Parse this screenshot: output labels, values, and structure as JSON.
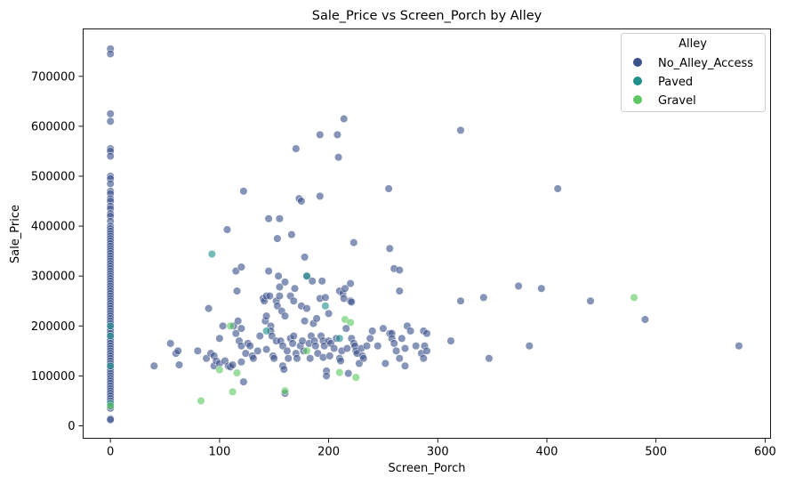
{
  "chart_data": {
    "type": "scatter",
    "title": "Sale_Price vs Screen_Porch by Alley",
    "xlabel": "Screen_Porch",
    "ylabel": "Sale_Price",
    "xlim": [
      -25,
      605
    ],
    "ylim": [
      -25000,
      795000
    ],
    "xticks": [
      0,
      100,
      200,
      300,
      400,
      500,
      600
    ],
    "yticks": [
      0,
      100000,
      200000,
      300000,
      400000,
      500000,
      600000,
      700000
    ],
    "xtick_labels": [
      "0",
      "100",
      "200",
      "300",
      "400",
      "500",
      "600"
    ],
    "ytick_labels": [
      "0",
      "100000",
      "200000",
      "300000",
      "400000",
      "500000",
      "600000",
      "700000"
    ],
    "grid": false,
    "legend": {
      "title": "Alley",
      "placement": "top-right"
    },
    "series": [
      {
        "name": "No_Alley_Access",
        "color": "#3b528b",
        "x0_y": [
          755000,
          745000,
          625000,
          610000,
          555000,
          550000,
          540000,
          500000,
          495000,
          485000,
          470000,
          465000,
          455000,
          450000,
          440000,
          435000,
          425000,
          420000,
          410000,
          400000,
          395000,
          390000,
          385000,
          380000,
          375000,
          370000,
          365000,
          360000,
          355000,
          350000,
          345000,
          340000,
          335000,
          330000,
          325000,
          320000,
          315000,
          310000,
          305000,
          300000,
          295000,
          290000,
          285000,
          280000,
          275000,
          270000,
          265000,
          260000,
          255000,
          250000,
          245000,
          240000,
          235000,
          230000,
          225000,
          220000,
          215000,
          210000,
          205000,
          200000,
          195000,
          190000,
          185000,
          180000,
          175000,
          170000,
          165000,
          160000,
          155000,
          150000,
          145000,
          140000,
          135000,
          130000,
          125000,
          120000,
          115000,
          110000,
          105000,
          100000,
          95000,
          90000,
          85000,
          80000,
          75000,
          70000,
          65000,
          60000,
          55000,
          50000,
          45000,
          40000,
          35000,
          14000,
          12000
        ],
        "points": [
          [
            40,
            120000
          ],
          [
            55,
            165000
          ],
          [
            60,
            145000
          ],
          [
            62,
            150000
          ],
          [
            63,
            122000
          ],
          [
            80,
            150000
          ],
          [
            88,
            135000
          ],
          [
            90,
            235000
          ],
          [
            92,
            145000
          ],
          [
            95,
            140000
          ],
          [
            95,
            120000
          ],
          [
            97,
            130000
          ],
          [
            100,
            125000
          ],
          [
            100,
            175000
          ],
          [
            103,
            200000
          ],
          [
            105,
            130000
          ],
          [
            107,
            393000
          ],
          [
            108,
            120000
          ],
          [
            110,
            118000
          ],
          [
            112,
            122000
          ],
          [
            113,
            200000
          ],
          [
            115,
            310000
          ],
          [
            115,
            185000
          ],
          [
            116,
            270000
          ],
          [
            117,
            210000
          ],
          [
            118,
            170000
          ],
          [
            120,
            318000
          ],
          [
            120,
            195000
          ],
          [
            120,
            160000
          ],
          [
            120,
            128000
          ],
          [
            122,
            88000
          ],
          [
            122,
            470000
          ],
          [
            124,
            145000
          ],
          [
            126,
            165000
          ],
          [
            128,
            160000
          ],
          [
            130,
            140000
          ],
          [
            131,
            135000
          ],
          [
            135,
            150000
          ],
          [
            137,
            180000
          ],
          [
            140,
            255000
          ],
          [
            141,
            250000
          ],
          [
            142,
            210000
          ],
          [
            143,
            260000
          ],
          [
            143,
            220000
          ],
          [
            143,
            153000
          ],
          [
            145,
            415000
          ],
          [
            145,
            310000
          ],
          [
            146,
            260000
          ],
          [
            147,
            200000
          ],
          [
            147,
            190000
          ],
          [
            148,
            180000
          ],
          [
            149,
            140000
          ],
          [
            150,
            135000
          ],
          [
            152,
            250000
          ],
          [
            152,
            170000
          ],
          [
            153,
            375000
          ],
          [
            153,
            240000
          ],
          [
            154,
            300000
          ],
          [
            155,
            415000
          ],
          [
            155,
            278000
          ],
          [
            155,
            260000
          ],
          [
            156,
            170000
          ],
          [
            157,
            230000
          ],
          [
            158,
            160000
          ],
          [
            158,
            120000
          ],
          [
            159,
            113000
          ],
          [
            160,
            288000
          ],
          [
            160,
            220000
          ],
          [
            160,
            65000
          ],
          [
            162,
            150000
          ],
          [
            163,
            135000
          ],
          [
            165,
            260000
          ],
          [
            165,
            175000
          ],
          [
            166,
            383000
          ],
          [
            167,
            165000
          ],
          [
            168,
            250000
          ],
          [
            168,
            180000
          ],
          [
            169,
            275000
          ],
          [
            170,
            555000
          ],
          [
            170,
            145000
          ],
          [
            171,
            135000
          ],
          [
            173,
            455000
          ],
          [
            174,
            160000
          ],
          [
            175,
            450000
          ],
          [
            175,
            240000
          ],
          [
            176,
            170000
          ],
          [
            177,
            150000
          ],
          [
            178,
            338000
          ],
          [
            178,
            210000
          ],
          [
            180,
            235000
          ],
          [
            180,
            300000
          ],
          [
            182,
            165000
          ],
          [
            183,
            135000
          ],
          [
            184,
            180000
          ],
          [
            185,
            290000
          ],
          [
            186,
            205000
          ],
          [
            187,
            170000
          ],
          [
            188,
            160000
          ],
          [
            189,
            215000
          ],
          [
            190,
            145000
          ],
          [
            192,
            583000
          ],
          [
            192,
            460000
          ],
          [
            192,
            255000
          ],
          [
            193,
            180000
          ],
          [
            194,
            290000
          ],
          [
            195,
            170000
          ],
          [
            195,
            137000
          ],
          [
            196,
            160000
          ],
          [
            197,
            257000
          ],
          [
            198,
            110000
          ],
          [
            198,
            100000
          ],
          [
            200,
            170000
          ],
          [
            200,
            225000
          ],
          [
            201,
            140000
          ],
          [
            202,
            165000
          ],
          [
            205,
            155000
          ],
          [
            207,
            175000
          ],
          [
            208,
            583000
          ],
          [
            209,
            538000
          ],
          [
            210,
            270000
          ],
          [
            210,
            135000
          ],
          [
            211,
            130000
          ],
          [
            212,
            150000
          ],
          [
            213,
            265000
          ],
          [
            214,
            615000
          ],
          [
            214,
            255000
          ],
          [
            215,
            275000
          ],
          [
            216,
            195000
          ],
          [
            217,
            155000
          ],
          [
            218,
            105000
          ],
          [
            220,
            250000
          ],
          [
            220,
            285000
          ],
          [
            221,
            248000
          ],
          [
            221,
            175000
          ],
          [
            223,
            367000
          ],
          [
            223,
            165000
          ],
          [
            224,
            160000
          ],
          [
            225,
            150000
          ],
          [
            226,
            145000
          ],
          [
            228,
            125000
          ],
          [
            230,
            155000
          ],
          [
            231,
            140000
          ],
          [
            232,
            135000
          ],
          [
            235,
            160000
          ],
          [
            238,
            175000
          ],
          [
            240,
            190000
          ],
          [
            245,
            160000
          ],
          [
            250,
            195000
          ],
          [
            252,
            125000
          ],
          [
            255,
            475000
          ],
          [
            256,
            355000
          ],
          [
            256,
            185000
          ],
          [
            258,
            185000
          ],
          [
            258,
            175000
          ],
          [
            260,
            315000
          ],
          [
            260,
            165000
          ],
          [
            262,
            150000
          ],
          [
            265,
            312000
          ],
          [
            265,
            270000
          ],
          [
            265,
            135000
          ],
          [
            267,
            175000
          ],
          [
            270,
            155000
          ],
          [
            270,
            120000
          ],
          [
            272,
            200000
          ],
          [
            275,
            190000
          ],
          [
            280,
            160000
          ],
          [
            285,
            145000
          ],
          [
            287,
            135000
          ],
          [
            287,
            190000
          ],
          [
            288,
            160000
          ],
          [
            290,
            150000
          ],
          [
            290,
            185000
          ],
          [
            312,
            170000
          ],
          [
            321,
            592000
          ],
          [
            321,
            250000
          ],
          [
            342,
            257000
          ],
          [
            347,
            135000
          ],
          [
            374,
            280000
          ],
          [
            384,
            160000
          ],
          [
            395,
            275000
          ],
          [
            410,
            475000
          ],
          [
            440,
            250000
          ],
          [
            490,
            213000
          ],
          [
            576,
            160000
          ]
        ]
      },
      {
        "name": "Paved",
        "color": "#21918c",
        "x0_y": [
          200000,
          180000,
          120000,
          45000
        ],
        "points": [
          [
            93,
            344000
          ],
          [
            180,
            300000
          ],
          [
            197,
            240000
          ],
          [
            210,
            175000
          ],
          [
            143,
            190000
          ]
        ]
      },
      {
        "name": "Gravel",
        "color": "#5ec962",
        "x0_y": [
          40000
        ],
        "points": [
          [
            83,
            50000
          ],
          [
            100,
            112000
          ],
          [
            110,
            200000
          ],
          [
            112,
            68000
          ],
          [
            116,
            106000
          ],
          [
            160,
            70000
          ],
          [
            180,
            150000
          ],
          [
            210,
            107000
          ],
          [
            215,
            213000
          ],
          [
            220,
            207000
          ],
          [
            225,
            97000
          ],
          [
            480,
            257000
          ]
        ]
      }
    ]
  }
}
